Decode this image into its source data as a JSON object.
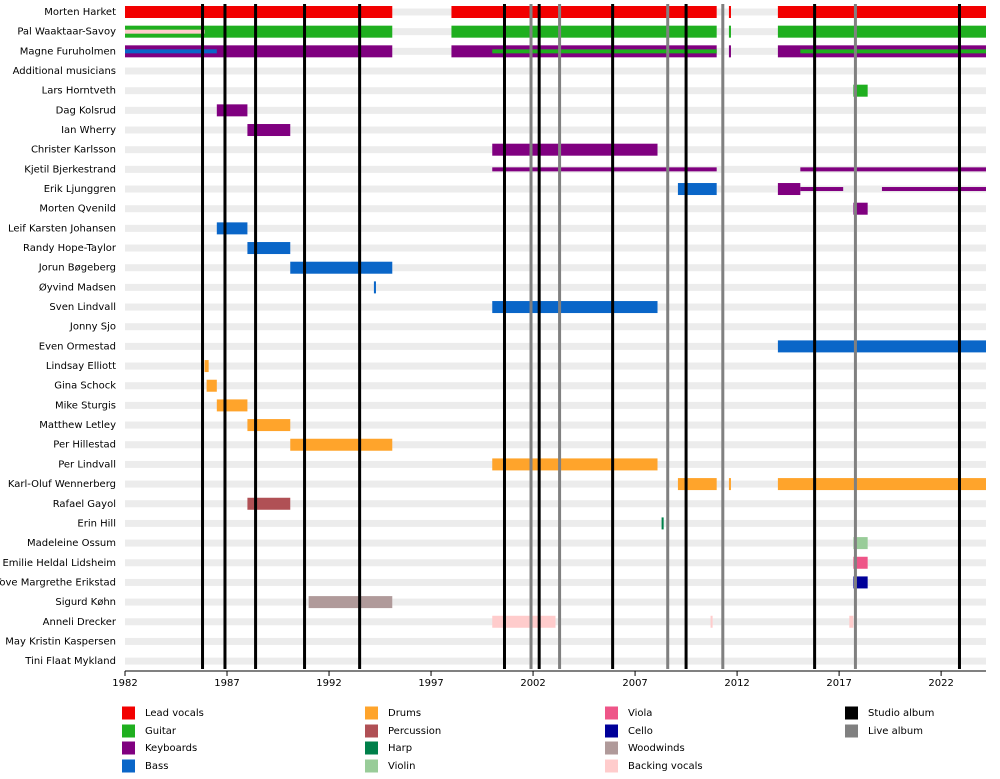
{
  "chart_data": {
    "type": "timeline",
    "categories": [
      "Morten Harket",
      "Pal Waaktaar-Savoy",
      "Magne Furuholmen",
      "Additional musicians",
      "Lars Horntveth",
      "Dag Kolsrud",
      "Ian Wherry",
      "Christer Karlsson",
      "Kjetil Bjerkestrand",
      "Erik Ljunggren",
      "Morten Qvenild",
      "Leif Karsten Johansen",
      "Randy Hope-Taylor",
      "Jorun Bøgeberg",
      "Øyvind Madsen",
      "Sven Lindvall",
      "Jonny Sjo",
      "Even Ormestad",
      "Lindsay Elliott",
      "Gina Schock",
      "Mike Sturgis",
      "Matthew Letley",
      "Per Hillestad",
      "Per Lindvall",
      "Karl-Oluf Wennerberg",
      "Rafael Gayol",
      "Erin Hill",
      "Madeleine Ossum",
      "Emilie Heldal Lidsheim",
      "Tove Margrethe Erikstad",
      "Sigurd Køhn",
      "Anneli Drecker",
      "May Kristin Kaspersen",
      "Tini Flaat Mykland"
    ],
    "roles": [
      {
        "name": "Lead vocals",
        "color": "#f20000"
      },
      {
        "name": "Guitar",
        "color": "#1faf1f"
      },
      {
        "name": "Keyboards",
        "color": "#800080"
      },
      {
        "name": "Bass",
        "color": "#0a66c8"
      },
      {
        "name": "Drums",
        "color": "#ffa42b"
      },
      {
        "name": "Percussion",
        "color": "#b05055"
      },
      {
        "name": "Harp",
        "color": "#00804a"
      },
      {
        "name": "Violin",
        "color": "#99cc99"
      },
      {
        "name": "Viola",
        "color": "#ee5588"
      },
      {
        "name": "Cello",
        "color": "#000099"
      },
      {
        "name": "Woodwinds",
        "color": "#b09a9a"
      },
      {
        "name": "Backing vocals",
        "color": "#ffcccc"
      }
    ],
    "album_types": [
      {
        "name": "Studio album",
        "color": "#000000"
      },
      {
        "name": "Live album",
        "color": "#808080"
      }
    ],
    "bars": [
      {
        "row": 0,
        "role": "Lead vocals",
        "start": 1982,
        "end": 1995.1
      },
      {
        "row": 0,
        "role": "Lead vocals",
        "start": 1998,
        "end": 2011
      },
      {
        "row": 0,
        "role": "Lead vocals",
        "start": 2011.6,
        "end": 2011.7
      },
      {
        "row": 0,
        "role": "Lead vocals",
        "start": 2014,
        "end": 2024.2
      },
      {
        "row": 1,
        "role": "Guitar",
        "start": 1982,
        "end": 1995.1
      },
      {
        "row": 1,
        "role": "Guitar",
        "start": 1998,
        "end": 2011
      },
      {
        "row": 1,
        "role": "Guitar",
        "start": 2011.6,
        "end": 2011.7
      },
      {
        "row": 1,
        "role": "Guitar",
        "start": 2014,
        "end": 2024.2
      },
      {
        "row": 1,
        "role": "Backing vocals",
        "start": 1982,
        "end": 1985.9,
        "secondary": true
      },
      {
        "row": 2,
        "role": "Keyboards",
        "start": 1982,
        "end": 1995.1
      },
      {
        "row": 2,
        "role": "Keyboards",
        "start": 1998,
        "end": 2011
      },
      {
        "row": 2,
        "role": "Keyboards",
        "start": 2011.6,
        "end": 2011.7
      },
      {
        "row": 2,
        "role": "Keyboards",
        "start": 2014,
        "end": 2024.2
      },
      {
        "row": 2,
        "role": "Bass",
        "start": 1982,
        "end": 1986.5,
        "secondary": true
      },
      {
        "row": 2,
        "role": "Guitar",
        "start": 2000,
        "end": 2011,
        "secondary": true
      },
      {
        "row": 2,
        "role": "Guitar",
        "start": 2015.1,
        "end": 2024.2,
        "secondary": true
      },
      {
        "row": 4,
        "role": "Guitar",
        "start": 2017.7,
        "end": 2018.4
      },
      {
        "row": 5,
        "role": "Keyboards",
        "start": 1986.5,
        "end": 1988
      },
      {
        "row": 6,
        "role": "Keyboards",
        "start": 1988,
        "end": 1990.1
      },
      {
        "row": 7,
        "role": "Keyboards",
        "start": 2000,
        "end": 2008.1
      },
      {
        "row": 8,
        "role": "Keyboards",
        "start": 2000,
        "end": 2011,
        "secondary": true
      },
      {
        "row": 8,
        "role": "Keyboards",
        "start": 2015.1,
        "end": 2024.2,
        "secondary": true
      },
      {
        "row": 9,
        "role": "Bass",
        "start": 2009.1,
        "end": 2011
      },
      {
        "row": 9,
        "role": "Keyboards",
        "start": 2014,
        "end": 2015.1
      },
      {
        "row": 9,
        "role": "Keyboards",
        "start": 2015.1,
        "end": 2017.2,
        "secondary": true
      },
      {
        "row": 9,
        "role": "Keyboards",
        "start": 2019.1,
        "end": 2024.2,
        "secondary": true
      },
      {
        "row": 10,
        "role": "Keyboards",
        "start": 2017.7,
        "end": 2018.4
      },
      {
        "row": 11,
        "role": "Bass",
        "start": 1986.5,
        "end": 1988
      },
      {
        "row": 12,
        "role": "Bass",
        "start": 1988,
        "end": 1990.1
      },
      {
        "row": 13,
        "role": "Bass",
        "start": 1990.1,
        "end": 1995.1
      },
      {
        "row": 14,
        "role": "Bass",
        "start": 1994.2,
        "end": 1994.3
      },
      {
        "row": 15,
        "role": "Bass",
        "start": 2000,
        "end": 2008.1
      },
      {
        "row": 17,
        "role": "Bass",
        "start": 2014,
        "end": 2024.2
      },
      {
        "row": 18,
        "role": "Drums",
        "start": 1985.9,
        "end": 1986.1
      },
      {
        "row": 19,
        "role": "Drums",
        "start": 1986,
        "end": 1986.5
      },
      {
        "row": 20,
        "role": "Drums",
        "start": 1986.5,
        "end": 1988
      },
      {
        "row": 21,
        "role": "Drums",
        "start": 1988,
        "end": 1990.1
      },
      {
        "row": 22,
        "role": "Drums",
        "start": 1990.1,
        "end": 1995.1
      },
      {
        "row": 23,
        "role": "Drums",
        "start": 2000,
        "end": 2008.1
      },
      {
        "row": 24,
        "role": "Drums",
        "start": 2009.1,
        "end": 2011
      },
      {
        "row": 24,
        "role": "Drums",
        "start": 2011.6,
        "end": 2011.7
      },
      {
        "row": 24,
        "role": "Drums",
        "start": 2014,
        "end": 2024.2
      },
      {
        "row": 25,
        "role": "Percussion",
        "start": 1988,
        "end": 1990.1
      },
      {
        "row": 26,
        "role": "Harp",
        "start": 2008.3,
        "end": 2008.4
      },
      {
        "row": 27,
        "role": "Violin",
        "start": 2017.7,
        "end": 2018.4
      },
      {
        "row": 28,
        "role": "Viola",
        "start": 2017.7,
        "end": 2018.4
      },
      {
        "row": 29,
        "role": "Cello",
        "start": 2017.7,
        "end": 2018.4
      },
      {
        "row": 30,
        "role": "Woodwinds",
        "start": 1991,
        "end": 1995.1
      },
      {
        "row": 31,
        "role": "Backing vocals",
        "start": 2000,
        "end": 2003.1
      },
      {
        "row": 31,
        "role": "Backing vocals",
        "start": 2010.7,
        "end": 2010.8
      },
      {
        "row": 31,
        "role": "Backing vocals",
        "start": 2017.5,
        "end": 2017.7
      }
    ],
    "studio_albums": [
      1985.8,
      1986.9,
      1988.4,
      1990.8,
      1993.5,
      2000.6,
      2002.3,
      2005.9,
      2009.5,
      2015.8,
      2022.9
    ],
    "live_albums": [
      2001.9,
      2003.3,
      2008.6,
      2011.3,
      2017.8
    ],
    "xlim": [
      1982,
      2024.2
    ],
    "xticks": [
      1982,
      1987,
      1992,
      1997,
      2002,
      2007,
      2012,
      2017,
      2022
    ]
  }
}
